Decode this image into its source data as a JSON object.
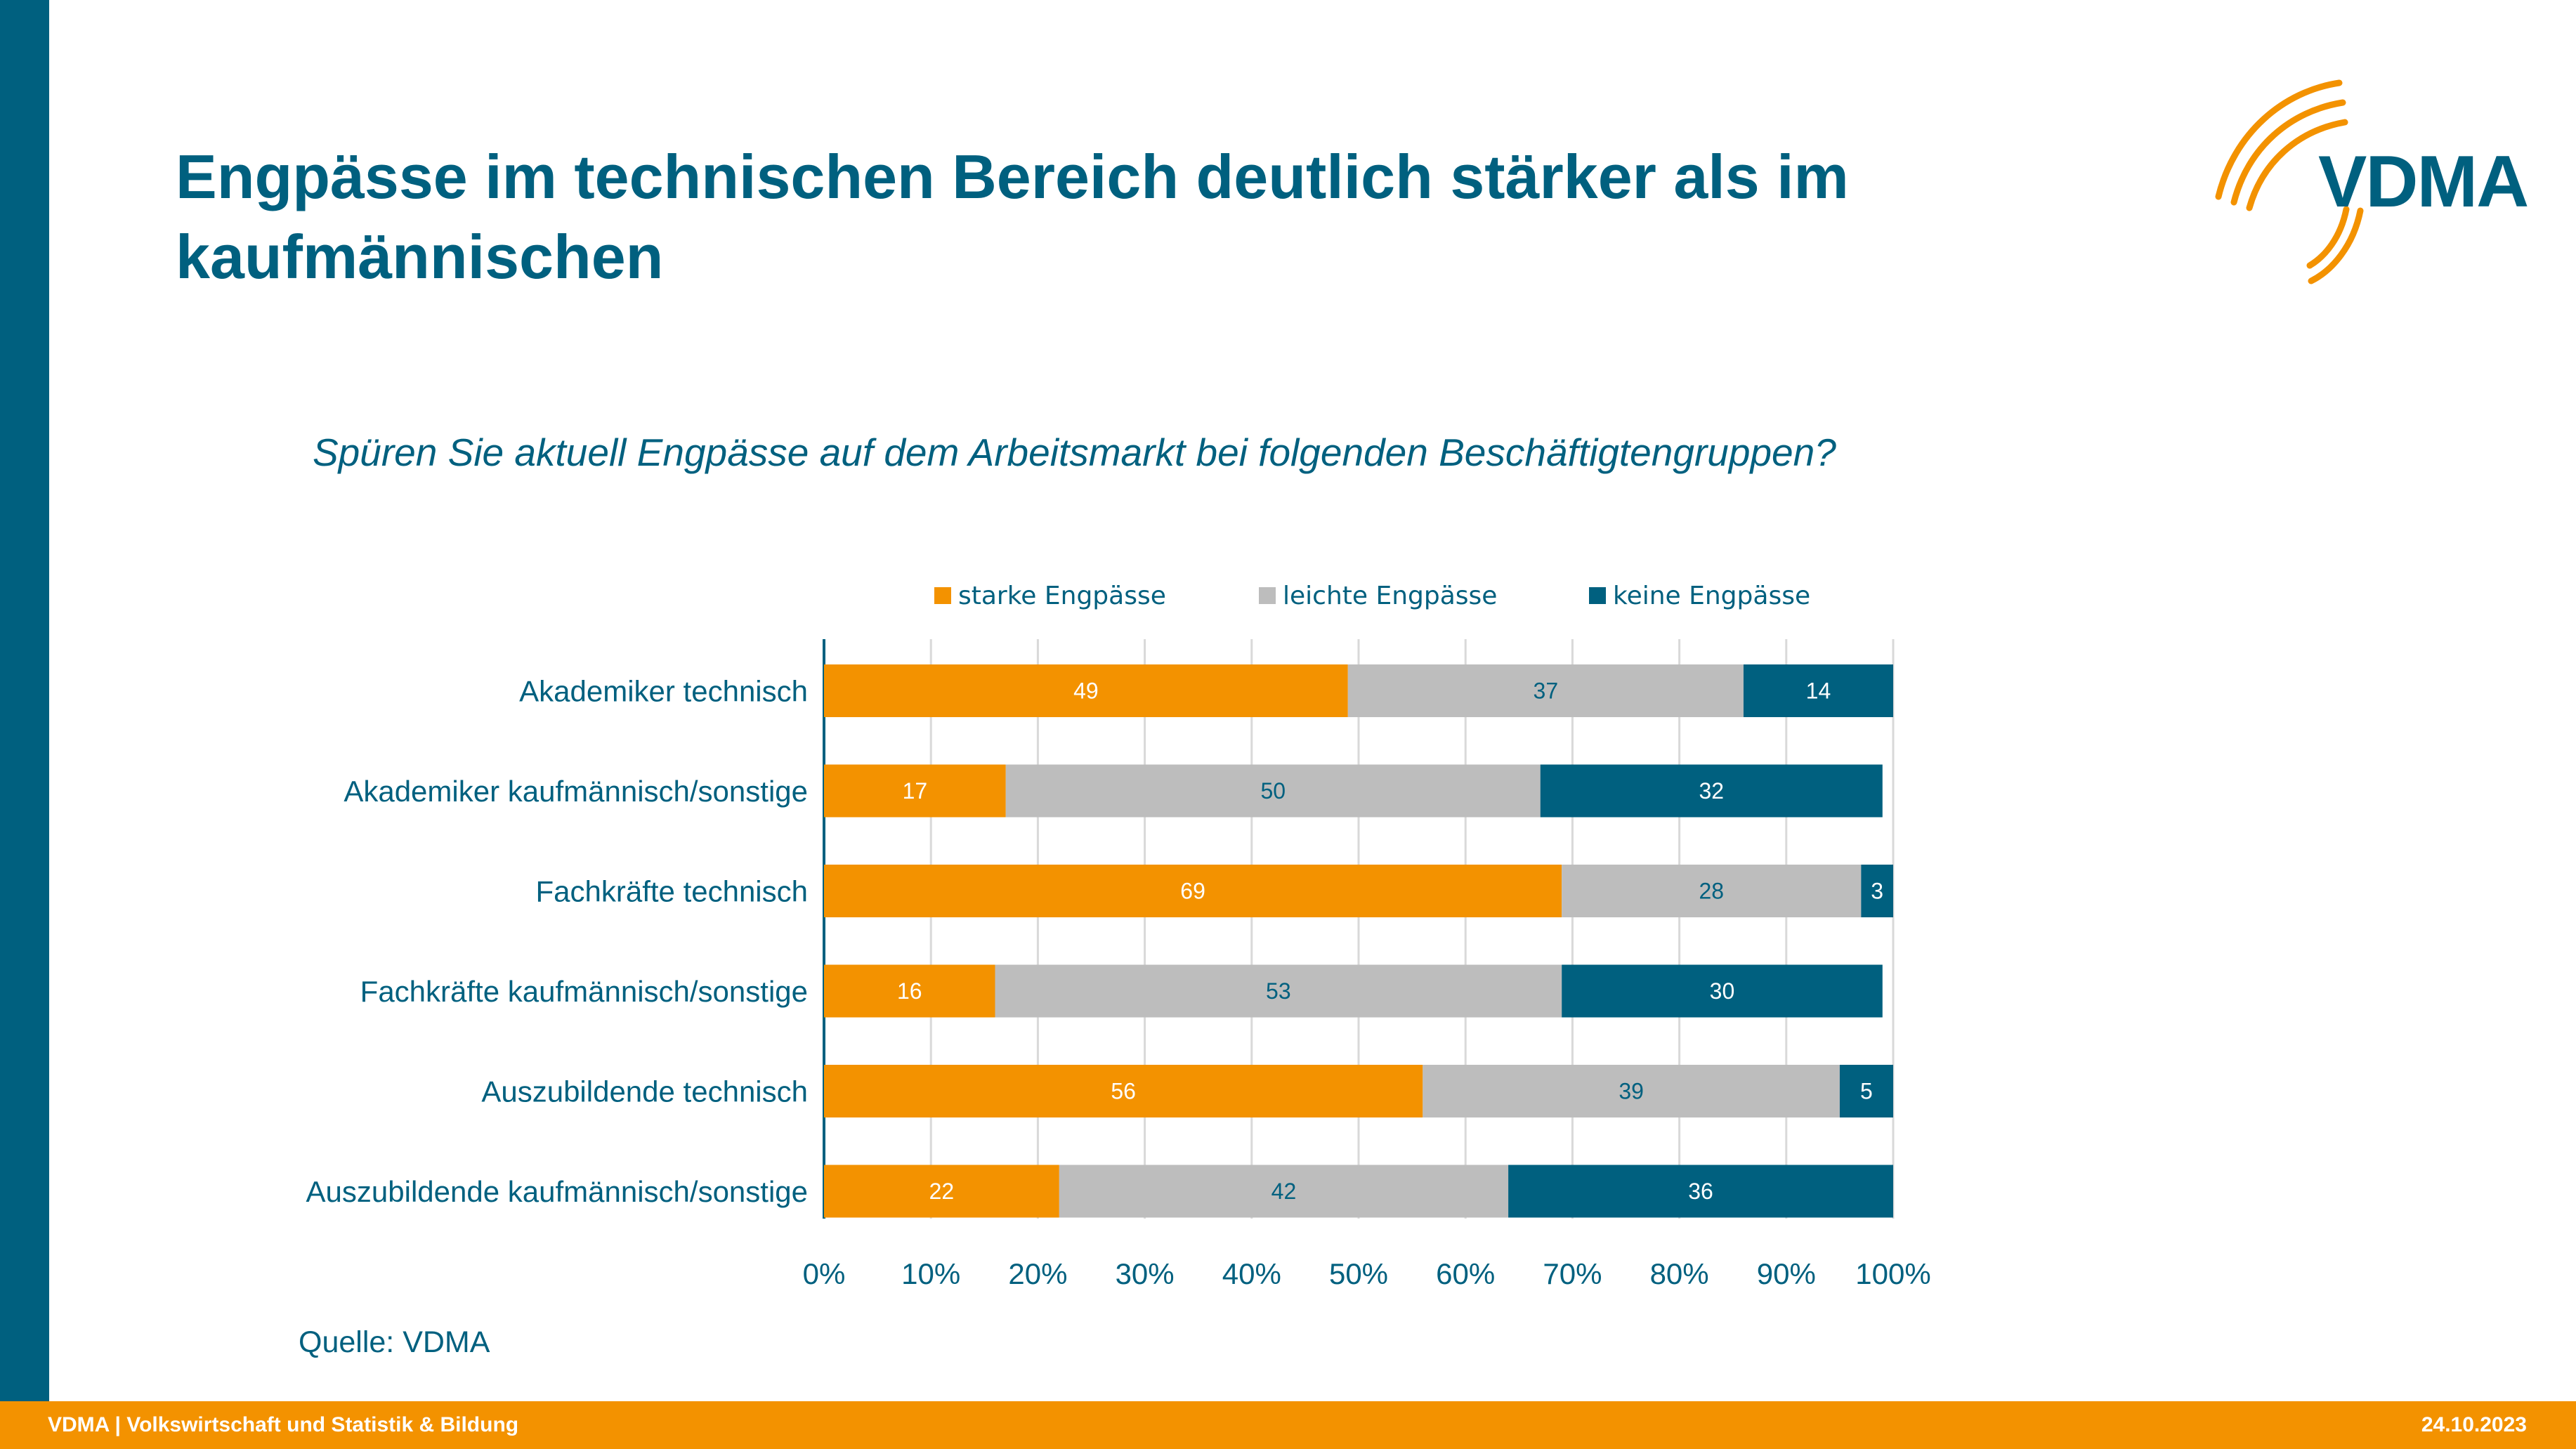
{
  "title": "Engpässe im technischen Bereich deutlich stärker als im kaufmännischen",
  "logo_text": "VDMA",
  "question": "Spüren Sie aktuell Engpässe auf dem Arbeitsmarkt bei folgenden Beschäftigtengruppen?",
  "source": "Quelle: VDMA",
  "footer": {
    "left": "VDMA | Volkswirtschaft und Statistik & Bildung",
    "right": "24.10.2023"
  },
  "colors": {
    "brand_blue": "#00607f",
    "orange": "#f39200",
    "grey": "#bdbdbd"
  },
  "chart_data": {
    "type": "bar",
    "orientation": "horizontal",
    "stacked": true,
    "title": "",
    "xlabel": "",
    "ylabel": "",
    "xlim": [
      0,
      100
    ],
    "ticks": [
      "0%",
      "10%",
      "20%",
      "30%",
      "40%",
      "50%",
      "60%",
      "70%",
      "80%",
      "90%",
      "100%"
    ],
    "grid": true,
    "legend_position": "top",
    "categories": [
      "Akademiker technisch",
      "Akademiker kaufmännisch/sonstige",
      "Fachkräfte technisch",
      "Fachkräfte kaufmännisch/sonstige",
      "Auszubildende technisch",
      "Auszubildende kaufmännisch/sonstige"
    ],
    "series": [
      {
        "name": "starke Engpässe",
        "color": "#f39200",
        "label_color": "#ffffff",
        "values": [
          49,
          17,
          69,
          16,
          56,
          22
        ]
      },
      {
        "name": "leichte Engpässe",
        "color": "#bdbdbd",
        "label_color": "#00607f",
        "values": [
          37,
          50,
          28,
          53,
          39,
          42
        ]
      },
      {
        "name": "keine Engpässe",
        "color": "#00607f",
        "label_color": "#ffffff",
        "values": [
          14,
          32,
          3,
          30,
          5,
          36
        ]
      }
    ]
  }
}
